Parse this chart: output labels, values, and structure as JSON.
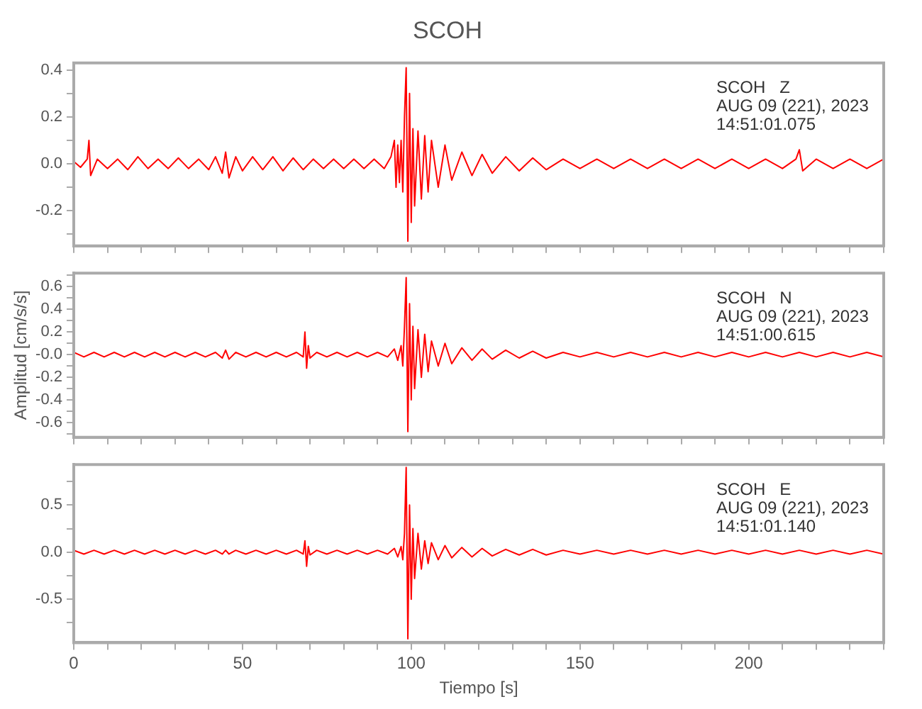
{
  "chart_data": [
    {
      "type": "line",
      "title": "SCOH",
      "annotations": [
        "SCOH   Z",
        "AUG 09 (221), 2023",
        "14:51:01.075"
      ],
      "marker": "none",
      "tick_labels": "y",
      "xlim": [
        0,
        240
      ],
      "xticks": [
        {
          "value": 0,
          "label": null
        },
        {
          "value": 10,
          "label": null
        },
        {
          "value": 20,
          "label": null
        },
        {
          "value": 30,
          "label": null
        },
        {
          "value": 40,
          "label": null
        },
        {
          "value": 50,
          "label": null
        },
        {
          "value": 60,
          "label": null
        },
        {
          "value": 70,
          "label": null
        },
        {
          "value": 80,
          "label": null
        },
        {
          "value": 90,
          "label": null
        },
        {
          "value": 100,
          "label": null
        },
        {
          "value": 110,
          "label": null
        },
        {
          "value": 120,
          "label": null
        },
        {
          "value": 130,
          "label": null
        },
        {
          "value": 140,
          "label": null
        },
        {
          "value": 150,
          "label": null
        },
        {
          "value": 160,
          "label": null
        },
        {
          "value": 170,
          "label": null
        },
        {
          "value": 180,
          "label": null
        },
        {
          "value": 190,
          "label": null
        },
        {
          "value": 200,
          "label": null
        },
        {
          "value": 210,
          "label": null
        },
        {
          "value": 220,
          "label": null
        },
        {
          "value": 230,
          "label": null
        },
        {
          "value": 240,
          "label": null
        }
      ],
      "ylim": [
        -0.35,
        0.43
      ],
      "yticks": [
        {
          "value": -0.3,
          "label": null
        },
        {
          "value": -0.2,
          "label": "-0.2"
        },
        {
          "value": -0.1,
          "label": null
        },
        {
          "value": 0,
          "label": "0.0"
        },
        {
          "value": 0.1,
          "label": null
        },
        {
          "value": 0.2,
          "label": "0.2"
        },
        {
          "value": 0.3,
          "label": null
        },
        {
          "value": 0.4,
          "label": "0.4"
        }
      ],
      "series": [
        {
          "color": "#ff0000",
          "x": [
            0,
            2,
            4,
            4.5,
            5,
            7,
            10,
            13,
            16,
            19,
            22,
            25,
            28,
            31,
            34,
            37,
            40,
            42,
            44,
            45,
            46,
            48,
            50,
            53,
            56,
            59,
            62,
            65,
            68,
            71,
            74,
            77,
            80,
            83,
            86,
            89,
            92,
            94,
            95,
            95.5,
            96,
            96.5,
            97,
            97.5,
            98,
            98.5,
            99,
            99.5,
            100,
            100.5,
            101,
            102,
            103,
            104,
            105,
            106,
            108,
            110,
            112,
            115,
            118,
            121,
            124,
            128,
            132,
            136,
            140,
            145,
            150,
            155,
            160,
            165,
            170,
            175,
            180,
            185,
            190,
            195,
            200,
            205,
            210,
            214,
            215,
            216,
            220,
            225,
            230,
            235,
            240
          ],
          "values": [
            0.01,
            -0.015,
            0.02,
            0.1,
            -0.05,
            0.02,
            -0.02,
            0.02,
            -0.025,
            0.03,
            -0.02,
            0.02,
            -0.02,
            0.025,
            -0.02,
            0.02,
            -0.025,
            0.03,
            -0.04,
            0.05,
            -0.06,
            0.03,
            -0.03,
            0.03,
            -0.025,
            0.03,
            -0.03,
            0.025,
            -0.025,
            0.02,
            -0.02,
            0.02,
            -0.02,
            0.02,
            -0.02,
            0.02,
            -0.02,
            0.03,
            0.1,
            -0.1,
            0.08,
            -0.08,
            0.1,
            -0.12,
            0.2,
            0.41,
            -0.33,
            0.3,
            -0.25,
            0.15,
            -0.18,
            0.14,
            -0.15,
            0.12,
            -0.12,
            0.1,
            -0.1,
            0.08,
            -0.07,
            0.05,
            -0.05,
            0.04,
            -0.04,
            0.03,
            -0.03,
            0.025,
            -0.025,
            0.02,
            -0.02,
            0.02,
            -0.02,
            0.02,
            -0.02,
            0.02,
            -0.02,
            0.02,
            -0.02,
            0.02,
            -0.02,
            0.02,
            -0.02,
            0.02,
            0.06,
            -0.03,
            0.02,
            -0.02,
            0.02,
            -0.02,
            0.02
          ]
        }
      ]
    },
    {
      "type": "line",
      "ylabel": "Amplitud [cm/s/s]",
      "annotations": [
        "SCOH   N",
        "AUG 09 (221), 2023",
        "14:51:00.615"
      ],
      "marker": "none",
      "tick_labels": "y",
      "xlim": [
        0,
        240
      ],
      "xticks": [
        {
          "value": 0,
          "label": null
        },
        {
          "value": 10,
          "label": null
        },
        {
          "value": 20,
          "label": null
        },
        {
          "value": 30,
          "label": null
        },
        {
          "value": 40,
          "label": null
        },
        {
          "value": 50,
          "label": null
        },
        {
          "value": 60,
          "label": null
        },
        {
          "value": 70,
          "label": null
        },
        {
          "value": 80,
          "label": null
        },
        {
          "value": 90,
          "label": null
        },
        {
          "value": 100,
          "label": null
        },
        {
          "value": 110,
          "label": null
        },
        {
          "value": 120,
          "label": null
        },
        {
          "value": 130,
          "label": null
        },
        {
          "value": 140,
          "label": null
        },
        {
          "value": 150,
          "label": null
        },
        {
          "value": 160,
          "label": null
        },
        {
          "value": 170,
          "label": null
        },
        {
          "value": 180,
          "label": null
        },
        {
          "value": 190,
          "label": null
        },
        {
          "value": 200,
          "label": null
        },
        {
          "value": 210,
          "label": null
        },
        {
          "value": 220,
          "label": null
        },
        {
          "value": 230,
          "label": null
        },
        {
          "value": 240,
          "label": null
        }
      ],
      "ylim": [
        -0.73,
        0.72
      ],
      "yticks": [
        {
          "value": -0.7,
          "label": null
        },
        {
          "value": -0.6,
          "label": "-0.6"
        },
        {
          "value": -0.5,
          "label": null
        },
        {
          "value": -0.4,
          "label": "-0.4"
        },
        {
          "value": -0.3,
          "label": null
        },
        {
          "value": -0.2,
          "label": "-0.2"
        },
        {
          "value": -0.1,
          "label": null
        },
        {
          "value": 0,
          "label": "-0.0"
        },
        {
          "value": 0.1,
          "label": null
        },
        {
          "value": 0.2,
          "label": "0.2"
        },
        {
          "value": 0.3,
          "label": null
        },
        {
          "value": 0.4,
          "label": "0.4"
        },
        {
          "value": 0.5,
          "label": null
        },
        {
          "value": 0.6,
          "label": "0.6"
        },
        {
          "value": 0.7,
          "label": null
        }
      ],
      "series": [
        {
          "color": "#ff0000",
          "x": [
            0,
            3,
            6,
            9,
            12,
            15,
            18,
            21,
            24,
            27,
            30,
            33,
            36,
            39,
            42,
            44,
            45,
            46,
            48,
            51,
            54,
            57,
            60,
            63,
            66,
            68,
            68.5,
            69,
            69.5,
            70,
            72,
            75,
            78,
            81,
            84,
            87,
            90,
            93,
            95,
            96,
            97,
            97.5,
            98,
            98.5,
            99,
            99.5,
            100,
            100.5,
            101,
            102,
            103,
            104,
            105,
            106,
            108,
            110,
            112,
            115,
            118,
            121,
            124,
            128,
            132,
            136,
            140,
            145,
            150,
            155,
            160,
            165,
            170,
            175,
            180,
            185,
            190,
            195,
            200,
            205,
            210,
            215,
            220,
            225,
            230,
            235,
            240
          ],
          "values": [
            0.02,
            -0.02,
            0.02,
            -0.02,
            0.02,
            -0.02,
            0.02,
            -0.02,
            0.02,
            -0.02,
            0.02,
            -0.02,
            0.02,
            -0.02,
            0.02,
            -0.03,
            0.04,
            -0.04,
            0.02,
            -0.02,
            0.02,
            -0.02,
            0.02,
            -0.02,
            0.02,
            -0.02,
            0.2,
            -0.12,
            0.08,
            -0.03,
            0.02,
            -0.02,
            0.02,
            -0.02,
            0.02,
            -0.02,
            0.02,
            -0.02,
            0.05,
            -0.05,
            0.08,
            -0.1,
            0.25,
            0.68,
            -0.68,
            0.45,
            -0.4,
            0.25,
            -0.3,
            0.22,
            -0.2,
            0.18,
            -0.15,
            0.12,
            -0.1,
            0.1,
            -0.08,
            0.06,
            -0.05,
            0.05,
            -0.04,
            0.04,
            -0.03,
            0.03,
            -0.03,
            0.02,
            -0.02,
            0.02,
            -0.02,
            0.02,
            -0.02,
            0.02,
            -0.02,
            0.02,
            -0.02,
            0.02,
            -0.02,
            0.02,
            -0.02,
            0.02,
            -0.02,
            0.02,
            -0.02,
            0.02,
            -0.02
          ]
        }
      ]
    },
    {
      "type": "line",
      "xlabel": "Tiempo [s]",
      "annotations": [
        "SCOH   E",
        "AUG 09 (221), 2023",
        "14:51:01.140"
      ],
      "marker": "none",
      "xlim": [
        0,
        240
      ],
      "xticks": [
        {
          "value": 0,
          "label": "0"
        },
        {
          "value": 10,
          "label": null
        },
        {
          "value": 20,
          "label": null
        },
        {
          "value": 30,
          "label": null
        },
        {
          "value": 40,
          "label": null
        },
        {
          "value": 50,
          "label": "50"
        },
        {
          "value": 60,
          "label": null
        },
        {
          "value": 70,
          "label": null
        },
        {
          "value": 80,
          "label": null
        },
        {
          "value": 90,
          "label": null
        },
        {
          "value": 100,
          "label": "100"
        },
        {
          "value": 110,
          "label": null
        },
        {
          "value": 120,
          "label": null
        },
        {
          "value": 130,
          "label": null
        },
        {
          "value": 140,
          "label": null
        },
        {
          "value": 150,
          "label": "150"
        },
        {
          "value": 160,
          "label": null
        },
        {
          "value": 170,
          "label": null
        },
        {
          "value": 180,
          "label": null
        },
        {
          "value": 190,
          "label": null
        },
        {
          "value": 200,
          "label": "200"
        },
        {
          "value": 210,
          "label": null
        },
        {
          "value": 220,
          "label": null
        },
        {
          "value": 230,
          "label": null
        },
        {
          "value": 240,
          "label": null
        }
      ],
      "ylim": [
        -0.96,
        0.93
      ],
      "yticks": [
        {
          "value": -0.75,
          "label": null
        },
        {
          "value": -0.5,
          "label": "-0.5"
        },
        {
          "value": -0.25,
          "label": null
        },
        {
          "value": 0,
          "label": "0.0"
        },
        {
          "value": 0.25,
          "label": null
        },
        {
          "value": 0.5,
          "label": "0.5"
        },
        {
          "value": 0.75,
          "label": null
        }
      ],
      "series": [
        {
          "color": "#ff0000",
          "x": [
            0,
            3,
            6,
            9,
            12,
            15,
            18,
            21,
            24,
            27,
            30,
            33,
            36,
            39,
            42,
            44,
            45,
            46,
            48,
            51,
            54,
            57,
            60,
            63,
            66,
            68,
            68.5,
            69,
            69.5,
            70,
            72,
            75,
            78,
            81,
            84,
            87,
            90,
            93,
            95,
            96,
            97,
            97.5,
            98,
            98.5,
            99,
            99.5,
            100,
            100.5,
            101,
            102,
            103,
            104,
            105,
            106,
            108,
            110,
            112,
            115,
            118,
            121,
            124,
            128,
            132,
            136,
            140,
            145,
            150,
            155,
            160,
            165,
            170,
            175,
            180,
            185,
            190,
            195,
            200,
            205,
            210,
            215,
            220,
            225,
            230,
            235,
            240
          ],
          "values": [
            0.02,
            -0.02,
            0.02,
            -0.02,
            0.02,
            -0.02,
            0.02,
            -0.02,
            0.02,
            -0.02,
            0.02,
            -0.02,
            0.02,
            -0.02,
            0.02,
            -0.02,
            0.02,
            -0.02,
            0.02,
            -0.02,
            0.02,
            -0.02,
            0.02,
            -0.02,
            0.02,
            -0.02,
            0.12,
            -0.15,
            0.06,
            -0.03,
            0.02,
            -0.02,
            0.02,
            -0.02,
            0.02,
            -0.02,
            0.02,
            -0.02,
            0.04,
            -0.05,
            0.06,
            -0.08,
            0.2,
            0.9,
            -0.92,
            0.5,
            -0.5,
            0.25,
            -0.28,
            0.2,
            -0.18,
            0.12,
            -0.12,
            0.1,
            -0.08,
            0.07,
            -0.06,
            0.05,
            -0.05,
            0.04,
            -0.04,
            0.03,
            -0.03,
            0.03,
            -0.03,
            0.02,
            -0.02,
            0.02,
            -0.02,
            0.02,
            -0.02,
            0.02,
            -0.02,
            0.02,
            -0.02,
            0.02,
            -0.02,
            0.02,
            -0.02,
            0.02,
            -0.02,
            0.02,
            -0.02,
            0.02,
            -0.02
          ]
        }
      ]
    }
  ]
}
